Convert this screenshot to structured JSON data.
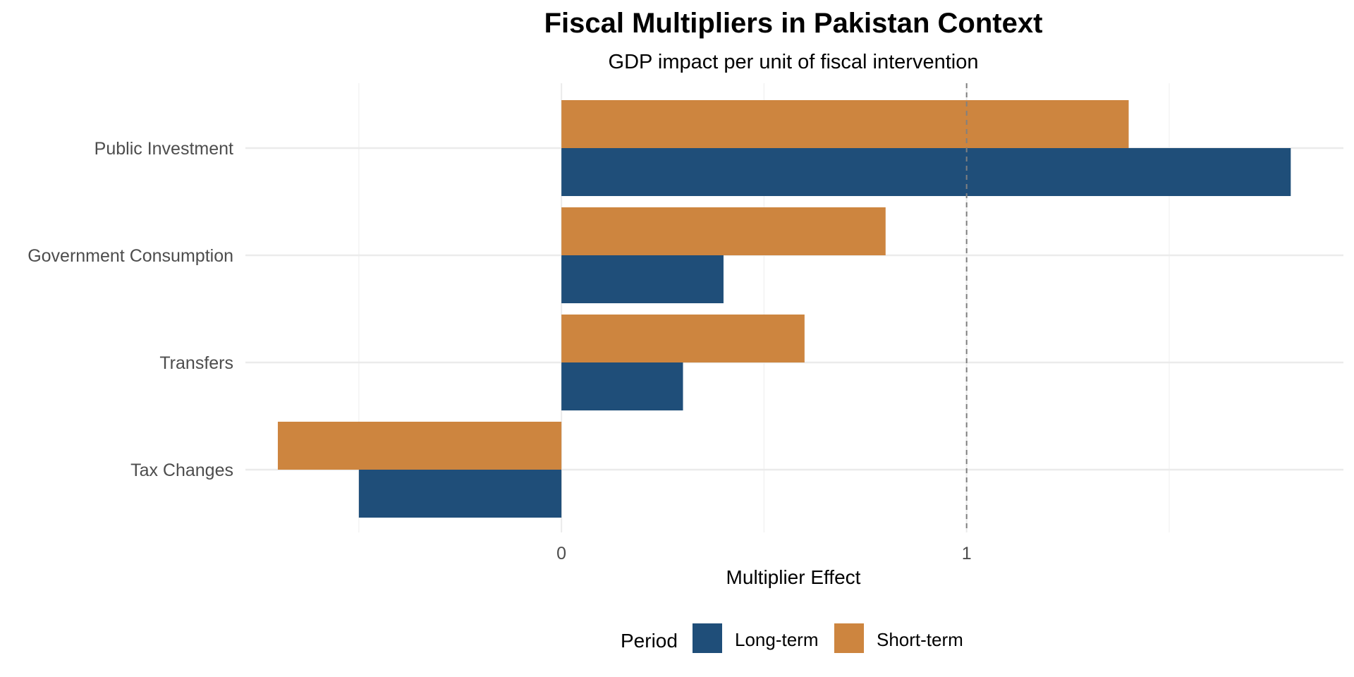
{
  "chart_data": {
    "type": "bar",
    "orientation": "horizontal",
    "title": "Fiscal Multipliers in Pakistan Context",
    "subtitle": "GDP impact per unit of fiscal intervention",
    "xlabel": "Multiplier Effect",
    "ylabel": "",
    "categories": [
      "Public Investment",
      "Government Consumption",
      "Transfers",
      "Tax Changes"
    ],
    "series": [
      {
        "name": "Short-term",
        "color": "#CD853F",
        "values": [
          1.4,
          0.8,
          0.6,
          -0.7
        ]
      },
      {
        "name": "Long-term",
        "color": "#1F4E79",
        "values": [
          1.8,
          0.4,
          0.3,
          -0.5
        ]
      }
    ],
    "xlim": [
      -0.78,
      1.93
    ],
    "x_ticks": [
      0,
      1
    ],
    "x_tick_labels": [
      "0",
      "1"
    ],
    "reference_line": {
      "x": 1,
      "style": "dashed",
      "color": "#808080"
    },
    "legend": {
      "title": "Period",
      "position": "bottom",
      "entries": [
        {
          "label": "Long-term",
          "color": "#1F4E79"
        },
        {
          "label": "Short-term",
          "color": "#CD853F"
        }
      ]
    },
    "grid": true
  }
}
